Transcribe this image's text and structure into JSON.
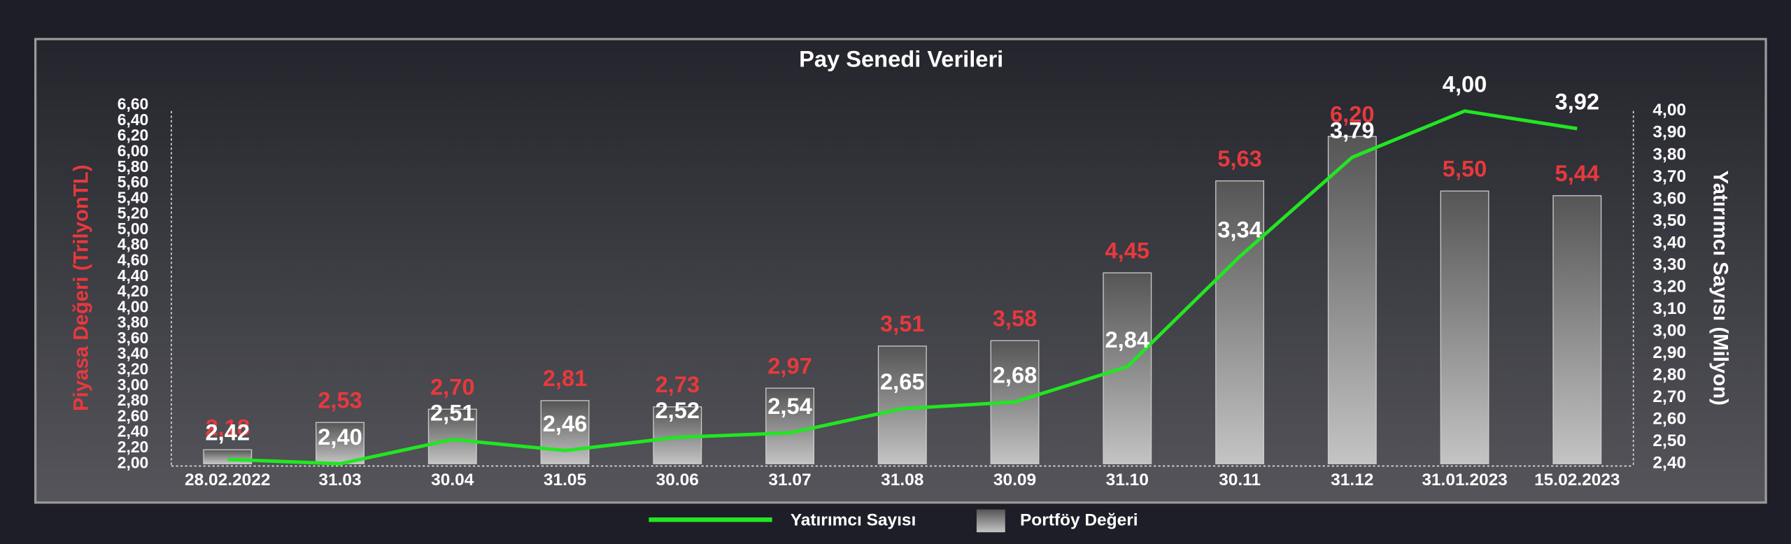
{
  "chart_data": {
    "type": "bar",
    "title": "Pay Senedi Verileri",
    "ylabel": "Piyasa Değeri (TrilyonTL)",
    "ylabel_color": "#e8393c",
    "y2label": "Yatırımcı Sayısı (Milyon)",
    "categories": [
      "28.02.2022",
      "31.03",
      "30.04",
      "31.05",
      "30.06",
      "31.07",
      "31.08",
      "30.09",
      "31.10",
      "30.11",
      "31.12",
      "31.01.2023",
      "15.02.2023"
    ],
    "series": [
      {
        "name": "Portföy Değeri",
        "type": "bar",
        "color": "#c4c4c4",
        "label_color": "#e8393c",
        "values": [
          2.18,
          2.53,
          2.7,
          2.81,
          2.73,
          2.97,
          3.51,
          3.58,
          4.45,
          5.63,
          6.2,
          5.5,
          5.44
        ],
        "value_labels": [
          "2,18",
          "2,53",
          "2,70",
          "2,81",
          "2,73",
          "2,97",
          "3,51",
          "3,58",
          "4,45",
          "5,63",
          "6,20",
          "5,50",
          "5,44"
        ]
      },
      {
        "name": "Yatırımcı Sayısı",
        "type": "line",
        "axis": "y2",
        "color": "#22e622",
        "label_color": "#ffffff",
        "values": [
          2.42,
          2.4,
          2.51,
          2.46,
          2.52,
          2.54,
          2.65,
          2.68,
          2.84,
          3.34,
          3.79,
          4.0,
          3.92
        ],
        "value_labels": [
          "2,42",
          "2,40",
          "2,51",
          "2,46",
          "2,52",
          "2,54",
          "2,65",
          "2,68",
          "2,84",
          "3,34",
          "3,79",
          "4,00",
          "3,92"
        ]
      }
    ],
    "ylim": [
      2.0,
      6.6
    ],
    "yticks": [
      {
        "value": 2.0,
        "label": "2,00"
      },
      {
        "value": 2.2,
        "label": "2,20"
      },
      {
        "value": 2.4,
        "label": "2,40"
      },
      {
        "value": 2.6,
        "label": "2,60"
      },
      {
        "value": 2.8,
        "label": "2,80"
      },
      {
        "value": 3.0,
        "label": "3,00"
      },
      {
        "value": 3.2,
        "label": "3,20"
      },
      {
        "value": 3.4,
        "label": "3,40"
      },
      {
        "value": 3.6,
        "label": "3,60"
      },
      {
        "value": 3.8,
        "label": "3,80"
      },
      {
        "value": 4.0,
        "label": "4,00"
      },
      {
        "value": 4.2,
        "label": "4,20"
      },
      {
        "value": 4.4,
        "label": "4,40"
      },
      {
        "value": 4.6,
        "label": "4,60"
      },
      {
        "value": 4.8,
        "label": "4,80"
      },
      {
        "value": 5.0,
        "label": "5,00"
      },
      {
        "value": 5.2,
        "label": "5,20"
      },
      {
        "value": 5.4,
        "label": "5,40"
      },
      {
        "value": 5.6,
        "label": "5,60"
      },
      {
        "value": 5.8,
        "label": "5,80"
      },
      {
        "value": 6.0,
        "label": "6,00"
      },
      {
        "value": 6.2,
        "label": "6,20"
      },
      {
        "value": 6.4,
        "label": "6,40"
      },
      {
        "value": 6.6,
        "label": "6,60"
      }
    ],
    "y2lim": [
      2.4,
      4.0
    ],
    "y2ticks": [
      {
        "value": 2.4,
        "label": "2,40"
      },
      {
        "value": 2.5,
        "label": "2,50"
      },
      {
        "value": 2.6,
        "label": "2,60"
      },
      {
        "value": 2.7,
        "label": "2,70"
      },
      {
        "value": 2.8,
        "label": "2,80"
      },
      {
        "value": 2.9,
        "label": "2,90"
      },
      {
        "value": 3.0,
        "label": "3,00"
      },
      {
        "value": 3.1,
        "label": "3,10"
      },
      {
        "value": 3.2,
        "label": "3,20"
      },
      {
        "value": 3.3,
        "label": "3,30"
      },
      {
        "value": 3.4,
        "label": "3,40"
      },
      {
        "value": 3.5,
        "label": "3,50"
      },
      {
        "value": 3.6,
        "label": "3,60"
      },
      {
        "value": 3.7,
        "label": "3,70"
      },
      {
        "value": 3.8,
        "label": "3,80"
      },
      {
        "value": 3.9,
        "label": "3,90"
      },
      {
        "value": 4.0,
        "label": "4,00"
      }
    ],
    "legend": "bottom"
  }
}
